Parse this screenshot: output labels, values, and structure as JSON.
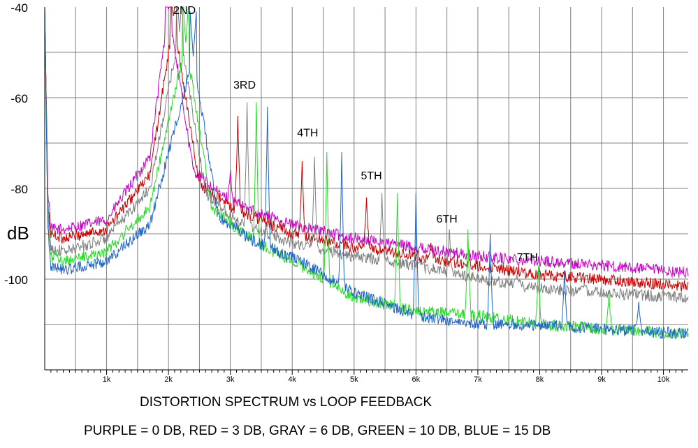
{
  "chart_data": {
    "type": "line",
    "title": "DISTORTION SPECTRUM vs LOOP FEEDBACK",
    "legend_text": "PURPLE = 0 DB, RED = 3 DB, GRAY = 6 DB, GREEN = 10 DB, BLUE = 15 DB",
    "ylabel": "dB",
    "xlabel": "",
    "xlim": [
      0,
      10400
    ],
    "ylim": [
      -120,
      -40
    ],
    "grid": true,
    "x_ticks": [
      {
        "value": 1000,
        "label": "1k"
      },
      {
        "value": 2000,
        "label": "2k"
      },
      {
        "value": 3000,
        "label": "3k"
      },
      {
        "value": 4000,
        "label": "4k"
      },
      {
        "value": 5000,
        "label": "5k"
      },
      {
        "value": 6000,
        "label": "6k"
      },
      {
        "value": 7000,
        "label": "7k"
      },
      {
        "value": 8000,
        "label": "8k"
      },
      {
        "value": 9000,
        "label": "9k"
      },
      {
        "value": 10000,
        "label": "10k"
      }
    ],
    "y_ticks": [
      {
        "value": -40,
        "label": "-40"
      },
      {
        "value": -60,
        "label": "-60"
      },
      {
        "value": -80,
        "label": "-80"
      },
      {
        "value": -100,
        "label": "-100"
      }
    ],
    "annotations": [
      {
        "text": "2ND",
        "x": 2260,
        "y": -41.5
      },
      {
        "text": "3RD",
        "x": 3230,
        "y": -58
      },
      {
        "text": "4TH",
        "x": 4250,
        "y": -68.5
      },
      {
        "text": "5TH",
        "x": 5280,
        "y": -78
      },
      {
        "text": "6TH",
        "x": 6500,
        "y": -87.5
      },
      {
        "text": "7TH",
        "x": 7800,
        "y": -96
      }
    ],
    "series": [
      {
        "color": "#c800c8",
        "fundamental": 2000,
        "peaks": [
          [
            2000,
            -40.5
          ],
          [
            3000,
            -76
          ],
          [
            4000,
            -89
          ],
          [
            5000,
            -94
          ],
          [
            6000,
            -96
          ],
          [
            7000,
            -97
          ],
          [
            8000,
            -97.5
          ]
        ],
        "floor": [
          [
            0,
            -40
          ],
          [
            50,
            -80
          ],
          [
            100,
            -89
          ],
          [
            300,
            -89
          ],
          [
            1000,
            -87
          ],
          [
            1700,
            -73
          ],
          [
            2000,
            -40.5
          ],
          [
            2400,
            -76
          ],
          [
            2800,
            -81
          ],
          [
            3200,
            -84
          ],
          [
            4000,
            -88
          ],
          [
            5000,
            -91
          ],
          [
            6000,
            -93
          ],
          [
            7000,
            -95
          ],
          [
            8000,
            -96
          ],
          [
            9000,
            -97
          ],
          [
            10300,
            -98.5
          ]
        ]
      },
      {
        "color": "#cc0000",
        "fundamental": 2080,
        "peaks": [
          [
            2080,
            -43
          ],
          [
            3120,
            -64
          ],
          [
            4160,
            -74
          ],
          [
            5200,
            -82
          ],
          [
            6240,
            -92
          ],
          [
            7280,
            -97
          ],
          [
            8320,
            -99
          ]
        ],
        "floor": [
          [
            0,
            -40
          ],
          [
            50,
            -83
          ],
          [
            100,
            -90
          ],
          [
            300,
            -91
          ],
          [
            1000,
            -89
          ],
          [
            1700,
            -77
          ],
          [
            2080,
            -43
          ],
          [
            2500,
            -79
          ],
          [
            3000,
            -84
          ],
          [
            3500,
            -87
          ],
          [
            4000,
            -90
          ],
          [
            5000,
            -93
          ],
          [
            6000,
            -95
          ],
          [
            7000,
            -97
          ],
          [
            8000,
            -99
          ],
          [
            9000,
            -100
          ],
          [
            10300,
            -101.5
          ]
        ]
      },
      {
        "color": "#808080",
        "fundamental": 2180,
        "peaks": [
          [
            2180,
            -45.5
          ],
          [
            3270,
            -61
          ],
          [
            4360,
            -73
          ],
          [
            5450,
            -81
          ],
          [
            6540,
            -89
          ],
          [
            7630,
            -99
          ],
          [
            8720,
            -101
          ]
        ],
        "floor": [
          [
            0,
            -40
          ],
          [
            50,
            -85
          ],
          [
            100,
            -93
          ],
          [
            300,
            -94
          ],
          [
            1000,
            -91
          ],
          [
            1700,
            -80
          ],
          [
            2180,
            -45.5
          ],
          [
            2600,
            -81
          ],
          [
            3100,
            -87
          ],
          [
            3600,
            -90
          ],
          [
            4000,
            -92
          ],
          [
            5000,
            -95
          ],
          [
            6000,
            -97
          ],
          [
            7000,
            -100
          ],
          [
            8000,
            -102
          ],
          [
            9000,
            -103
          ],
          [
            10300,
            -104
          ]
        ]
      },
      {
        "color": "#22dd22",
        "fundamental": 2280,
        "peaks": [
          [
            2280,
            -48
          ],
          [
            3420,
            -61
          ],
          [
            4560,
            -72
          ],
          [
            5700,
            -81
          ],
          [
            6840,
            -89
          ],
          [
            7980,
            -97
          ],
          [
            9120,
            -103
          ]
        ],
        "floor": [
          [
            0,
            -40
          ],
          [
            50,
            -87
          ],
          [
            100,
            -95
          ],
          [
            300,
            -96
          ],
          [
            1000,
            -94
          ],
          [
            1700,
            -84
          ],
          [
            2280,
            -48
          ],
          [
            2700,
            -84
          ],
          [
            3200,
            -90
          ],
          [
            3700,
            -94
          ],
          [
            4000,
            -96
          ],
          [
            5000,
            -104
          ],
          [
            6000,
            -107
          ],
          [
            7000,
            -108
          ],
          [
            8000,
            -110
          ],
          [
            9000,
            -111
          ],
          [
            10300,
            -112
          ]
        ]
      },
      {
        "color": "#1e64c8",
        "fundamental": 2400,
        "peaks": [
          [
            2400,
            -51
          ],
          [
            3600,
            -62
          ],
          [
            4800,
            -72
          ],
          [
            6000,
            -81
          ],
          [
            7200,
            -90
          ],
          [
            8400,
            -98
          ],
          [
            9600,
            -105
          ]
        ],
        "floor": [
          [
            0,
            -40
          ],
          [
            50,
            -88
          ],
          [
            100,
            -97
          ],
          [
            300,
            -98
          ],
          [
            1000,
            -96
          ],
          [
            1700,
            -88
          ],
          [
            2400,
            -51
          ],
          [
            2800,
            -86
          ],
          [
            3300,
            -91
          ],
          [
            3800,
            -94
          ],
          [
            4000,
            -95
          ],
          [
            5000,
            -103
          ],
          [
            6000,
            -108
          ],
          [
            7000,
            -110
          ],
          [
            8000,
            -110
          ],
          [
            9000,
            -111
          ],
          [
            10300,
            -112
          ]
        ]
      }
    ]
  }
}
